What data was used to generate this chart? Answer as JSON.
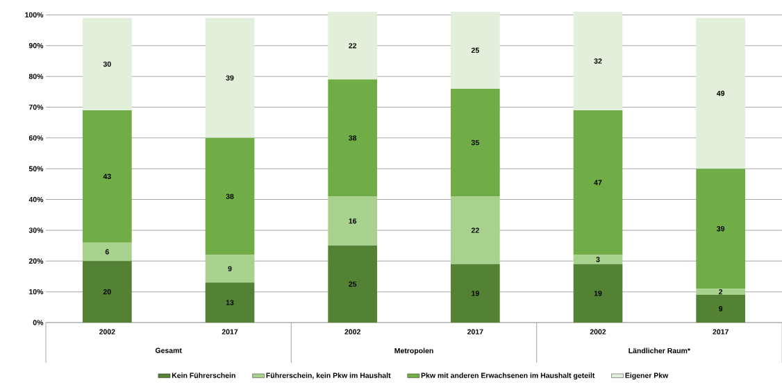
{
  "chart_data": {
    "type": "bar",
    "stacked": true,
    "data_labels": true,
    "grid": "y",
    "legend": "bottom",
    "categories": [
      "2002",
      "2017",
      "2002",
      "2017",
      "2002",
      "2017"
    ],
    "series": [
      {
        "name": "Kein Führerschein",
        "color": "#548235",
        "values": [
          20,
          13,
          25,
          19,
          19,
          9
        ]
      },
      {
        "name": "Führerschein, kein Pkw im Haushalt",
        "color": "#a9d18e",
        "values": [
          6,
          9,
          16,
          22,
          3,
          2
        ]
      },
      {
        "name": "Pkw mit anderen Erwachsenen im Haushalt geteilt",
        "color": "#70ad47",
        "values": [
          43,
          38,
          38,
          35,
          47,
          39
        ]
      },
      {
        "name": "Eigener Pkw",
        "color": "#e2efda",
        "values": [
          30,
          39,
          22,
          25,
          32,
          49
        ]
      }
    ],
    "ylim": [
      0,
      101
    ],
    "yticks": [
      {
        "value": 0,
        "label": "0%"
      },
      {
        "value": 10,
        "label": "10%"
      },
      {
        "value": 20,
        "label": "20%"
      },
      {
        "value": 30,
        "label": "30%"
      },
      {
        "value": 40,
        "label": "40%"
      },
      {
        "value": 50,
        "label": "50%"
      },
      {
        "value": 60,
        "label": "60%"
      },
      {
        "value": 70,
        "label": "70%"
      },
      {
        "value": 80,
        "label": "80%"
      },
      {
        "value": 90,
        "label": "90%"
      },
      {
        "value": 100,
        "label": "100%"
      }
    ],
    "annotations": [
      "Gesamt",
      "Metropolen",
      "Ländlicher Raum*"
    ]
  }
}
